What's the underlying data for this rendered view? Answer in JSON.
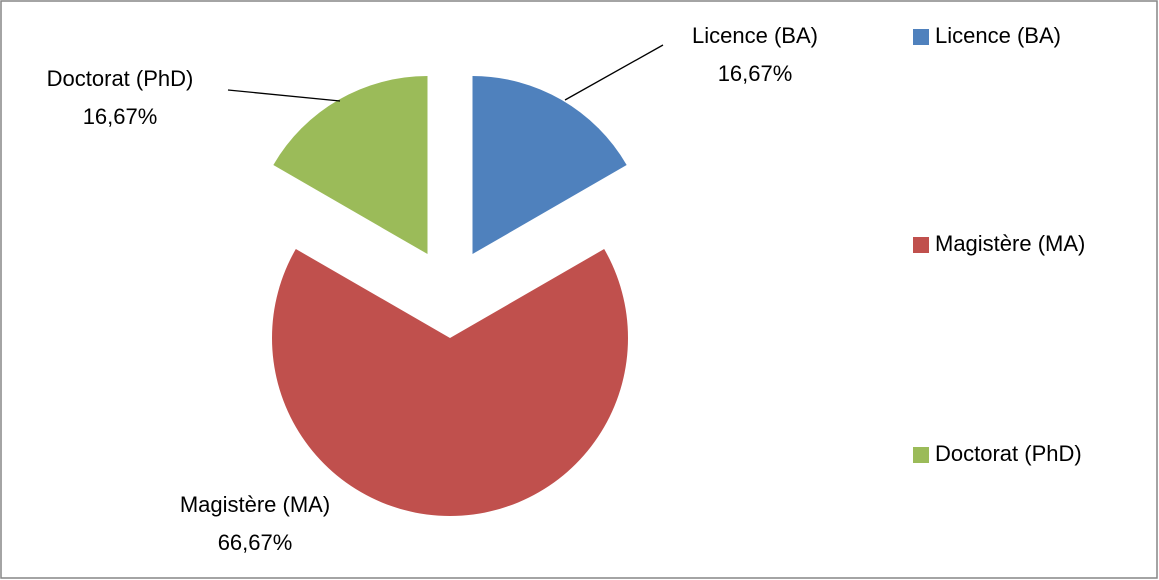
{
  "chart_data": {
    "type": "pie",
    "categories": [
      "Licence (BA)",
      "Magistère (MA)",
      "Doctorat (PhD)"
    ],
    "values": [
      16.67,
      66.67,
      16.67
    ],
    "value_labels": [
      "16,67%",
      "66,67%",
      "16,67%"
    ],
    "colors": [
      "#4f81bd",
      "#c0504d",
      "#9bbb59"
    ],
    "legend": "right"
  }
}
